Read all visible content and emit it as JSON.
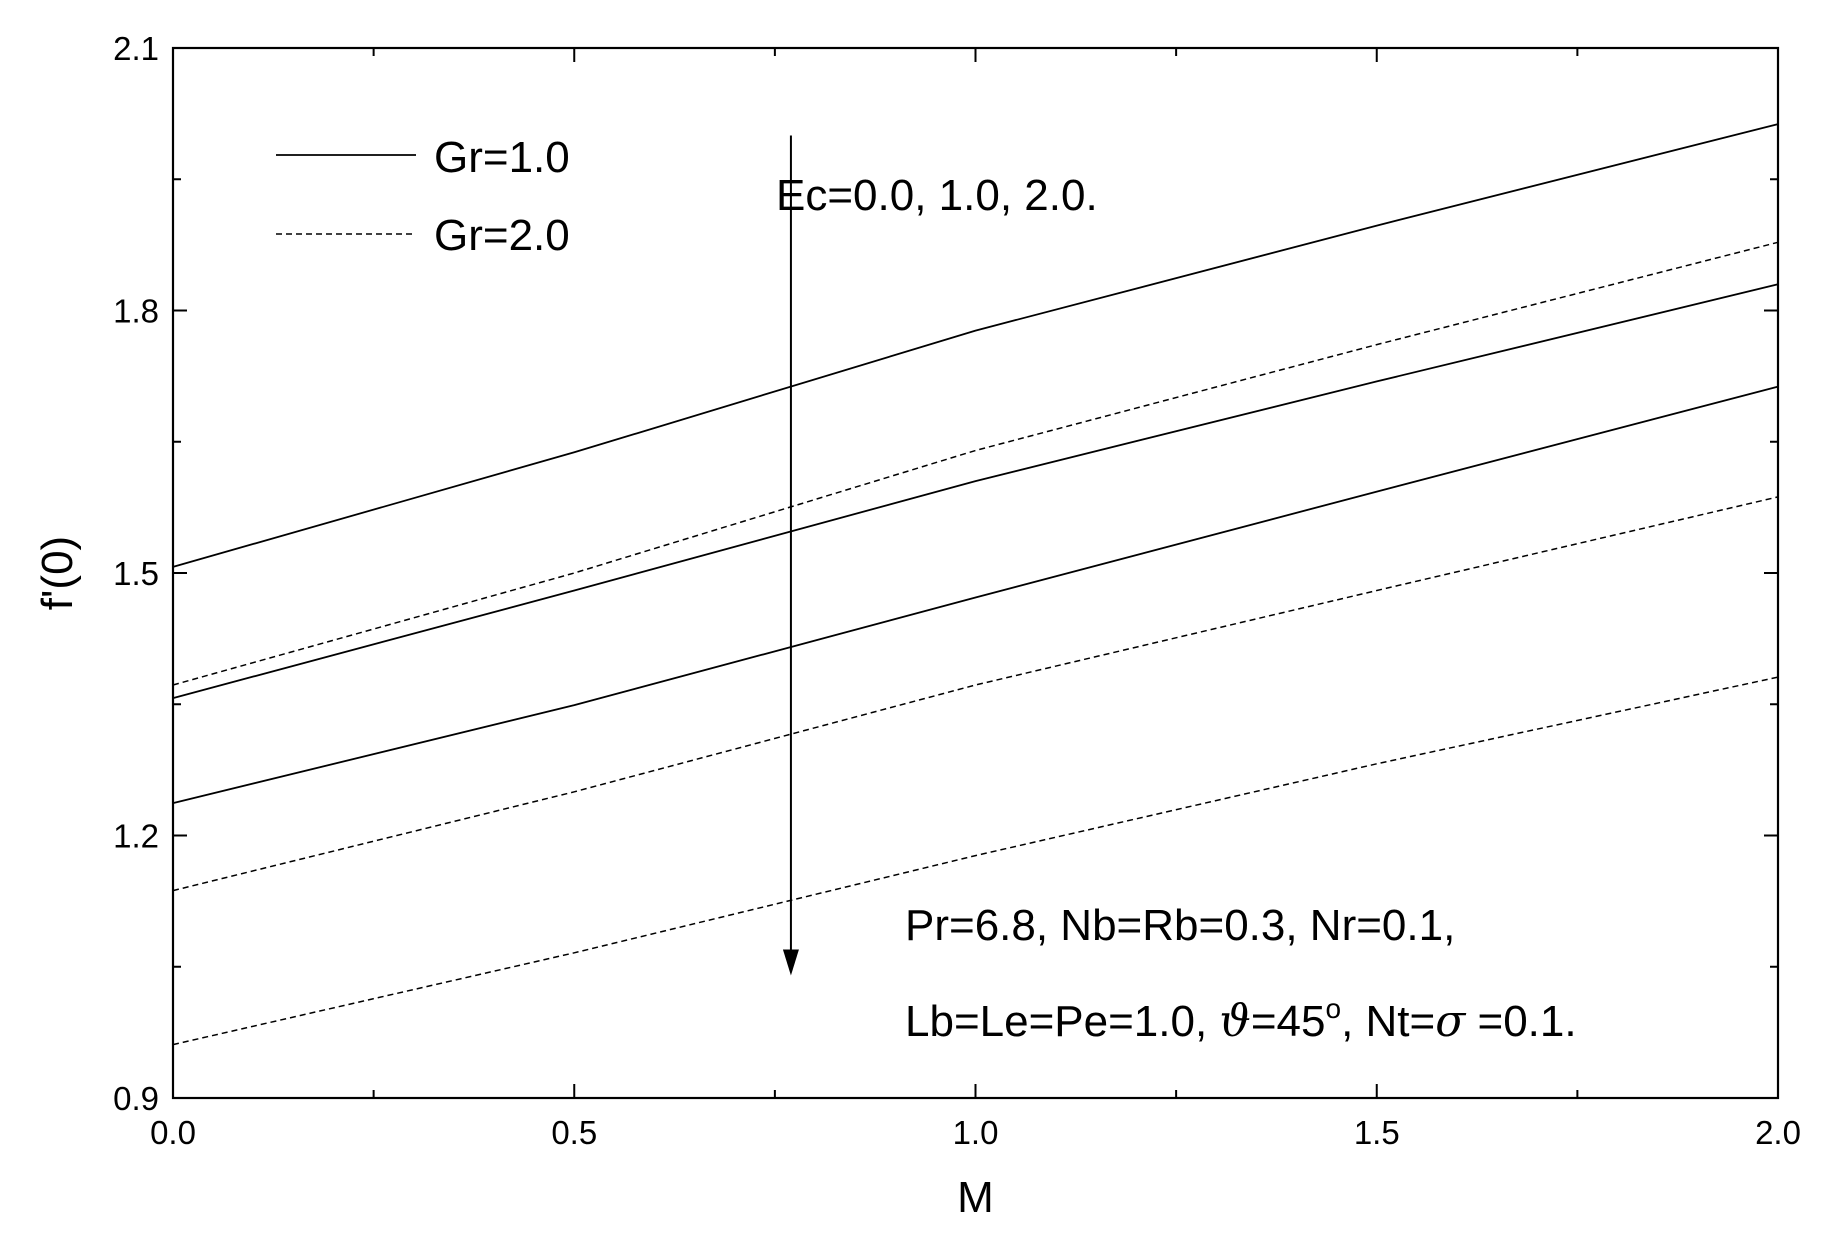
{
  "chart_data": {
    "type": "line",
    "title": "",
    "xlabel": "M",
    "ylabel": "f'(0)",
    "xlim": [
      0.0,
      2.0
    ],
    "ylim": [
      0.9,
      2.1
    ],
    "x_ticks": [
      "0.0",
      "0.5",
      "1.0",
      "1.5",
      "2.0"
    ],
    "y_ticks": [
      "0.9",
      "1.2",
      "1.5",
      "1.8",
      "2.1"
    ],
    "x_minor_step": 0.25,
    "y_minor_step": 0.15,
    "grid": false,
    "legend": {
      "placement": "top-left",
      "entries": [
        {
          "label": "Gr=1.0",
          "style": "solid"
        },
        {
          "label": "Gr=2.0",
          "style": "dashed"
        }
      ]
    },
    "series": [
      {
        "group": "Gr=1.0",
        "style": "solid",
        "x": [
          0.0,
          0.5,
          1.0,
          1.5,
          2.0
        ],
        "y": [
          1.507,
          1.638,
          1.777,
          1.897,
          2.013
        ]
      },
      {
        "group": "Gr=1.0",
        "style": "solid",
        "x": [
          0.0,
          0.5,
          1.0,
          1.5,
          2.0
        ],
        "y": [
          1.357,
          1.48,
          1.605,
          1.719,
          1.83
        ]
      },
      {
        "group": "Gr=1.0",
        "style": "solid",
        "x": [
          0.0,
          0.5,
          1.0,
          1.5,
          2.0
        ],
        "y": [
          1.237,
          1.349,
          1.472,
          1.593,
          1.713
        ]
      },
      {
        "group": "Gr=2.0",
        "style": "dashed",
        "x": [
          0.0,
          0.5,
          1.0,
          1.5,
          2.0
        ],
        "y": [
          1.372,
          1.5,
          1.64,
          1.761,
          1.878
        ]
      },
      {
        "group": "Gr=2.0",
        "style": "dashed",
        "x": [
          0.0,
          0.5,
          1.0,
          1.5,
          2.0
        ],
        "y": [
          1.137,
          1.25,
          1.372,
          1.48,
          1.587
        ]
      },
      {
        "group": "Gr=2.0",
        "style": "dashed",
        "x": [
          0.0,
          0.5,
          1.0,
          1.5,
          2.0
        ],
        "y": [
          0.961,
          1.066,
          1.177,
          1.282,
          1.381
        ]
      }
    ],
    "annotations": {
      "arrow_label": "Ec=0.0, 1.0, 2.0.",
      "arrow": {
        "x": 0.77,
        "y_start": 2.0,
        "y_end": 1.04
      },
      "params_line1": "Pr=6.8, Nb=Rb=0.3, Nr=0.1,",
      "params_line2_a": "Lb=Le=Pe=1.0, ",
      "params_line2_sym1": "ϑ",
      "params_line2_b": "=45",
      "params_line2_sup": "o",
      "params_line2_c": ", Nt=",
      "params_line2_sym2": "σ",
      "params_line2_d": " =0.1."
    }
  }
}
